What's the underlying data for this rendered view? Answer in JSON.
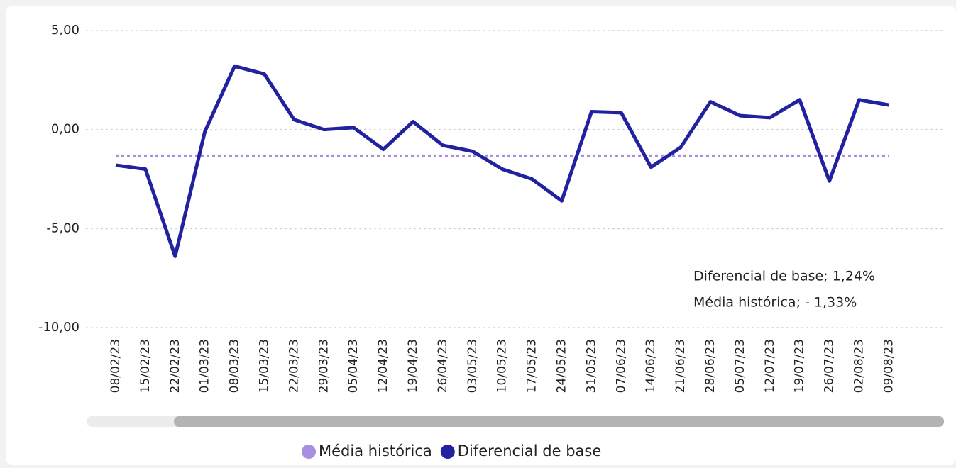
{
  "chart_data": {
    "type": "line",
    "categories": [
      "08/02/23",
      "15/02/23",
      "22/02/23",
      "01/03/23",
      "08/03/23",
      "15/03/23",
      "22/03/23",
      "29/03/23",
      "05/04/23",
      "12/04/23",
      "19/04/23",
      "26/04/23",
      "03/05/23",
      "10/05/23",
      "17/05/23",
      "24/05/23",
      "31/05/23",
      "07/06/23",
      "14/06/23",
      "21/06/23",
      "28/06/23",
      "05/07/23",
      "12/07/23",
      "19/07/23",
      "26/07/23",
      "02/08/23",
      "09/08/23"
    ],
    "series": [
      {
        "name": "Média histórica",
        "color": "#a98fe0",
        "dash": true,
        "values": [
          -1.33,
          -1.33,
          -1.33,
          -1.33,
          -1.33,
          -1.33,
          -1.33,
          -1.33,
          -1.33,
          -1.33,
          -1.33,
          -1.33,
          -1.33,
          -1.33,
          -1.33,
          -1.33,
          -1.33,
          -1.33,
          -1.33,
          -1.33,
          -1.33,
          -1.33,
          -1.33,
          -1.33,
          -1.33,
          -1.33,
          -1.33
        ]
      },
      {
        "name": "Diferencial de base",
        "color": "#2222a0",
        "dash": false,
        "values": [
          -1.8,
          -2.0,
          -6.4,
          -0.1,
          3.2,
          2.8,
          0.5,
          0.0,
          0.1,
          -1.0,
          0.4,
          -0.8,
          -1.1,
          -2.0,
          -2.5,
          -3.6,
          0.9,
          0.85,
          -1.9,
          -0.9,
          1.4,
          0.7,
          0.6,
          1.5,
          -2.6,
          1.5,
          1.24
        ]
      }
    ],
    "ylim": [
      -10,
      5
    ],
    "yticks": [
      {
        "value": 5,
        "label": "5,00"
      },
      {
        "value": 0,
        "label": "0,00"
      },
      {
        "value": -5,
        "label": "-5,00"
      },
      {
        "value": -10,
        "label": "-10,00"
      }
    ],
    "grid": true,
    "annotations": [
      "Diferencial de base; 1,24%",
      "Média histórica; - 1,33%"
    ]
  }
}
